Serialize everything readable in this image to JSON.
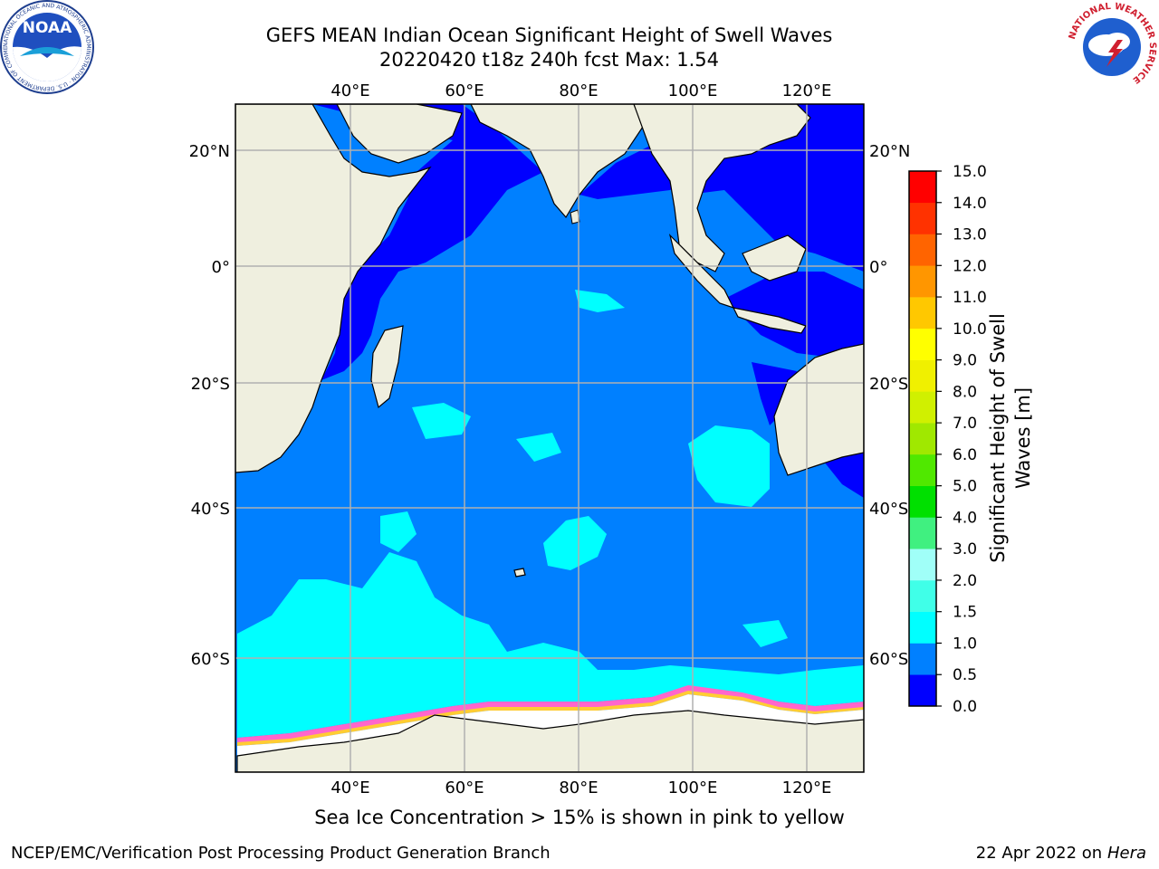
{
  "header": {
    "title_line1": "GEFS MEAN Indian Ocean Significant Height of Swell Waves",
    "title_line2": "20220420 t18z 240h fcst   Max: 1.54"
  },
  "map": {
    "lon_labels": [
      "40°E",
      "60°E",
      "80°E",
      "100°E",
      "120°E"
    ],
    "lat_labels": [
      "20°N",
      "0°",
      "20°S",
      "40°S",
      "60°S"
    ],
    "land_color": "#efefdf",
    "ice_color": "#ffffff",
    "grid_color": "#b0b0b0"
  },
  "colorbar": {
    "title_line1": "Significant Height of Swell",
    "title_line2": "Waves [m]",
    "levels": [
      "0.0",
      "0.5",
      "1.0",
      "1.5",
      "2.0",
      "3.0",
      "4.0",
      "5.0",
      "6.0",
      "7.0",
      "8.0",
      "9.0",
      "10.0",
      "11.0",
      "12.0",
      "13.0",
      "14.0",
      "15.0"
    ],
    "colors": [
      "#0000ff",
      "#0080ff",
      "#00ffff",
      "#40ffe8",
      "#a0fff8",
      "#40f080",
      "#00e000",
      "#50e800",
      "#a0e800",
      "#d0f000",
      "#f0f000",
      "#ffff00",
      "#ffc800",
      "#ff9600",
      "#ff6400",
      "#ff3200",
      "#ff0000"
    ]
  },
  "caption": "Sea Ice Concentration > 15% is shown in pink to yellow",
  "footer": {
    "left": "NCEP/EMC/Verification Post Processing Product Generation Branch",
    "right_prefix": "22 Apr 2022 on ",
    "right_host": "Hera"
  },
  "logos": {
    "noaa_text": "NOAA",
    "noaa_ring": "NATIONAL OCEANIC AND ATMOSPHERIC ADMINISTRATION · U.S. DEPARTMENT OF COMMERCE",
    "nws_ring": "NATIONAL WEATHER SERVICE"
  }
}
